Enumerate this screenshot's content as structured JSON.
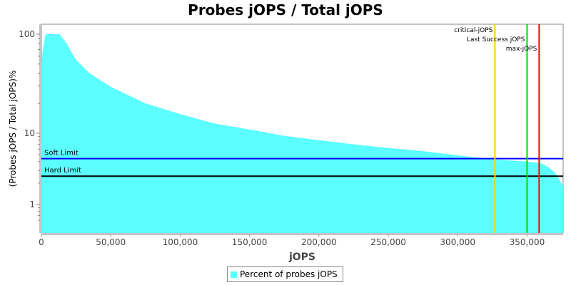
{
  "chart_data": {
    "type": "area",
    "title": "Probes jOPS / Total jOPS",
    "xlabel": "jOPS",
    "ylabel": "(Probes jOPS / Total jOPS)%",
    "y_scale": "log",
    "xlim": [
      0,
      376000
    ],
    "ylim": [
      0.5,
      130
    ],
    "x_ticks": [
      "0",
      "50,000",
      "100,000",
      "150,000",
      "200,000",
      "250,000",
      "300,000",
      "350,000"
    ],
    "x_tick_values": [
      0,
      50000,
      100000,
      150000,
      200000,
      250000,
      300000,
      350000
    ],
    "y_ticks": [
      "1",
      "10",
      "100"
    ],
    "y_tick_values": [
      1,
      10,
      100
    ],
    "grid": false,
    "legend": {
      "placement": "bottom",
      "entries": [
        "Percent of probes jOPS"
      ]
    },
    "series": [
      {
        "name": "Percent of probes jOPS",
        "color": "#5cffff",
        "x": [
          0,
          1000,
          3000,
          13000,
          17000,
          25000,
          35000,
          50000,
          75000,
          100000,
          125000,
          150000,
          175000,
          200000,
          225000,
          250000,
          275000,
          300000,
          325000,
          350000,
          360000,
          365000,
          370000,
          373000,
          376000
        ],
        "y": [
          50,
          70,
          100,
          100,
          85,
          55,
          40,
          29.4,
          20,
          15.6,
          12.5,
          10.9,
          9.2,
          8.0,
          7.0,
          6.2,
          5.6,
          4.9,
          4.3,
          4.0,
          3.8,
          3.4,
          2.8,
          2.3,
          1.8
        ]
      }
    ],
    "horizontal_lines": [
      {
        "label": "Soft Limit",
        "value": 4.4,
        "color": "#0000ff"
      },
      {
        "label": "Hard Limit",
        "value": 2.5,
        "color": "#000000"
      }
    ],
    "vertical_lines": [
      {
        "label": "critical-jOPS",
        "value": 326800,
        "color": "#ffcc00"
      },
      {
        "label": "Last Success jOPS",
        "value": 350000,
        "color": "#00dd00"
      },
      {
        "label": "max-jOPS",
        "value": 358700,
        "color": "#ff0000"
      }
    ]
  }
}
